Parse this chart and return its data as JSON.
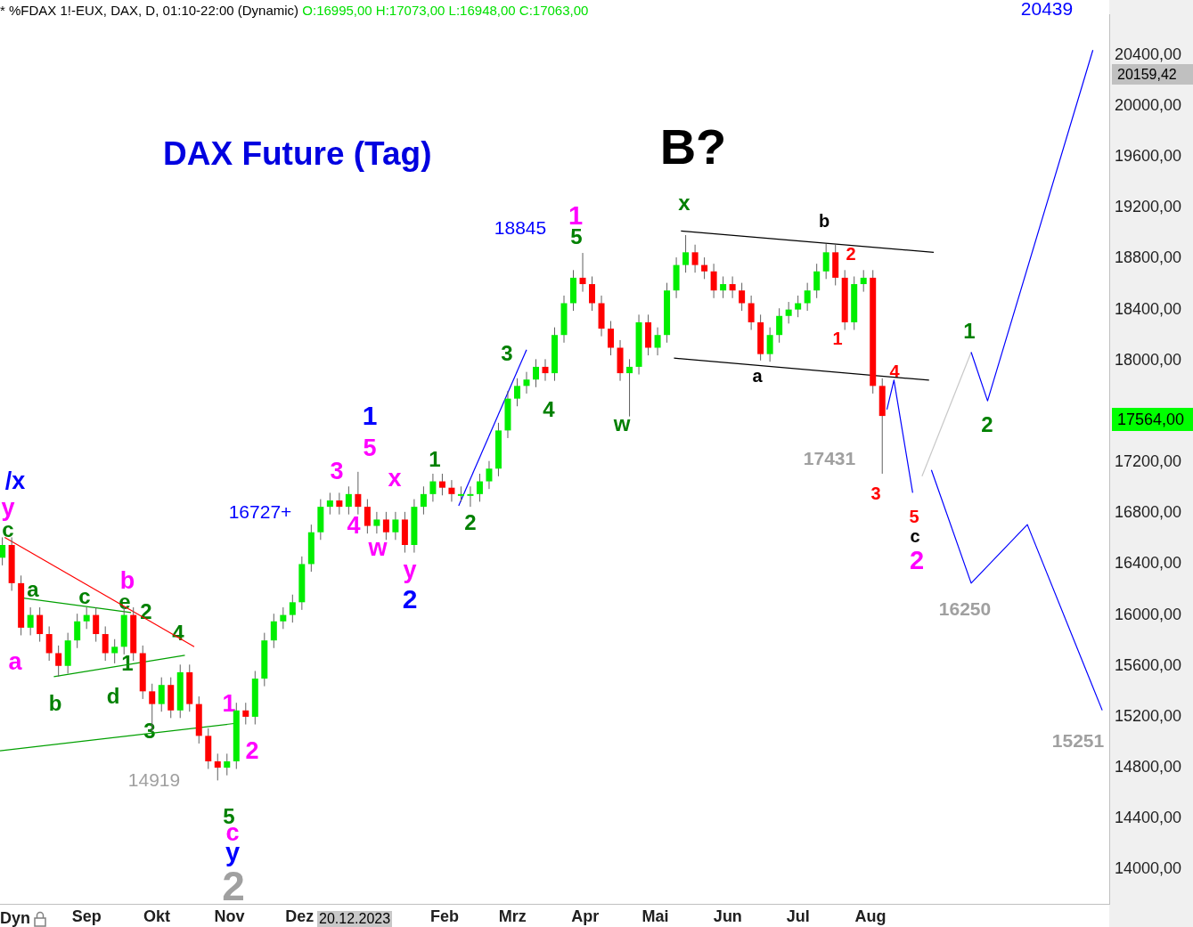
{
  "chart_data": {
    "type": "candlestick",
    "title": "DAX Future (Tag)",
    "subtitle": "* %FDAX 1!-EUX, DAX, D, 01:10-22:00 (Dynamic)",
    "x": [
      "2023-07-27",
      "2023-07-31",
      "2023-08-04",
      "2023-08-08",
      "2023-08-12",
      "2023-08-16",
      "2023-08-20",
      "2023-08-24",
      "2023-08-28",
      "2023-09-01",
      "2023-09-05",
      "2023-09-09",
      "2023-09-13",
      "2023-09-17",
      "2023-09-21",
      "2023-09-25",
      "2023-09-29",
      "2023-10-03",
      "2023-10-07",
      "2023-10-11",
      "2023-10-15",
      "2023-10-19",
      "2023-10-23",
      "2023-10-27",
      "2023-10-31",
      "2023-11-04",
      "2023-11-08",
      "2023-11-12",
      "2023-11-16",
      "2023-11-20",
      "2023-11-24",
      "2023-11-28",
      "2023-12-02",
      "2023-12-06",
      "2023-12-10",
      "2023-12-14",
      "2023-12-18",
      "2023-12-22",
      "2023-12-26",
      "2023-12-30",
      "2024-01-03",
      "2024-01-07",
      "2024-01-11",
      "2024-01-15",
      "2024-01-19",
      "2024-01-23",
      "2024-01-27",
      "2024-01-31",
      "2024-02-04",
      "2024-02-08",
      "2024-02-12",
      "2024-02-16",
      "2024-02-20",
      "2024-02-24",
      "2024-02-28",
      "2024-03-03",
      "2024-03-07",
      "2024-03-11",
      "2024-03-15",
      "2024-03-19",
      "2024-03-23",
      "2024-03-27",
      "2024-03-31",
      "2024-04-04",
      "2024-04-08",
      "2024-04-12",
      "2024-04-16",
      "2024-04-20",
      "2024-04-24",
      "2024-04-28",
      "2024-05-02",
      "2024-05-06",
      "2024-05-10",
      "2024-05-14",
      "2024-05-18",
      "2024-05-22",
      "2024-05-26",
      "2024-05-30",
      "2024-06-03",
      "2024-06-07",
      "2024-06-11",
      "2024-06-15",
      "2024-06-19",
      "2024-06-23",
      "2024-06-27",
      "2024-07-01",
      "2024-07-05",
      "2024-07-09",
      "2024-07-13",
      "2024-07-17",
      "2024-07-21",
      "2024-07-25",
      "2024-07-29",
      "2024-08-02",
      "2024-08-06"
    ],
    "ohlc": [
      [
        16450,
        16610,
        16390,
        16550
      ],
      [
        16550,
        16610,
        16190,
        16250
      ],
      [
        16250,
        16310,
        15840,
        15900
      ],
      [
        15900,
        16060,
        15840,
        16000
      ],
      [
        16000,
        16060,
        15790,
        15850
      ],
      [
        15850,
        15910,
        15640,
        15700
      ],
      [
        15700,
        15760,
        15515,
        15600
      ],
      [
        15600,
        15860,
        15540,
        15800
      ],
      [
        15800,
        16010,
        15740,
        15950
      ],
      [
        15950,
        16060,
        15890,
        16000
      ],
      [
        16000,
        16060,
        15790,
        15850
      ],
      [
        15850,
        15910,
        15640,
        15700
      ],
      [
        15700,
        15810,
        15620,
        15750
      ],
      [
        15750,
        16060,
        15690,
        16000
      ],
      [
        16000,
        16060,
        15640,
        15700
      ],
      [
        15700,
        15760,
        15340,
        15400
      ],
      [
        15400,
        15460,
        15080,
        15300
      ],
      [
        15300,
        15510,
        15240,
        15450
      ],
      [
        15450,
        15510,
        15190,
        15250
      ],
      [
        15250,
        15610,
        15190,
        15550
      ],
      [
        15550,
        15610,
        15240,
        15300
      ],
      [
        15300,
        15360,
        14990,
        15050
      ],
      [
        15050,
        15110,
        14790,
        14850
      ],
      [
        14850,
        14910,
        14700,
        14800
      ],
      [
        14800,
        14910,
        14740,
        14850
      ],
      [
        14850,
        15310,
        14790,
        15250
      ],
      [
        15250,
        15310,
        15140,
        15200
      ],
      [
        15200,
        15560,
        15140,
        15500
      ],
      [
        15500,
        15860,
        15440,
        15800
      ],
      [
        15800,
        16010,
        15740,
        15950
      ],
      [
        15950,
        16060,
        15890,
        16000
      ],
      [
        16000,
        16160,
        15940,
        16100
      ],
      [
        16100,
        16460,
        16040,
        16400
      ],
      [
        16400,
        16710,
        16340,
        16650
      ],
      [
        16650,
        16910,
        16590,
        16850
      ],
      [
        16850,
        16960,
        16790,
        16900
      ],
      [
        16900,
        16960,
        16790,
        16850
      ],
      [
        16850,
        17010,
        16790,
        16950
      ],
      [
        16950,
        17125,
        16790,
        16850
      ],
      [
        16850,
        16910,
        16640,
        16700
      ],
      [
        16700,
        16810,
        16640,
        16750
      ],
      [
        16750,
        16810,
        16590,
        16650
      ],
      [
        16650,
        16810,
        16590,
        16750
      ],
      [
        16750,
        16810,
        16490,
        16550
      ],
      [
        16550,
        16910,
        16490,
        16850
      ],
      [
        16850,
        17010,
        16790,
        16950
      ],
      [
        16950,
        17110,
        16890,
        17050
      ],
      [
        17050,
        17110,
        16940,
        17000
      ],
      [
        17000,
        17060,
        16890,
        16950
      ],
      [
        16950,
        17010,
        16890,
        16950
      ],
      [
        16950,
        17010,
        16850,
        16950
      ],
      [
        16950,
        17110,
        16890,
        17050
      ],
      [
        17050,
        17210,
        16990,
        17150
      ],
      [
        17150,
        17510,
        17090,
        17450
      ],
      [
        17450,
        17760,
        17390,
        17700
      ],
      [
        17700,
        17860,
        17640,
        17800
      ],
      [
        17800,
        17910,
        17740,
        17850
      ],
      [
        17850,
        18010,
        17790,
        17950
      ],
      [
        17950,
        18010,
        17840,
        17900
      ],
      [
        17900,
        18260,
        17840,
        18200
      ],
      [
        18200,
        18510,
        18140,
        18450
      ],
      [
        18450,
        18710,
        18390,
        18650
      ],
      [
        18650,
        18845,
        18540,
        18600
      ],
      [
        18600,
        18660,
        18390,
        18450
      ],
      [
        18450,
        18510,
        18190,
        18250
      ],
      [
        18250,
        18310,
        18040,
        18100
      ],
      [
        18100,
        18160,
        17840,
        17900
      ],
      [
        17900,
        18010,
        17560,
        17950
      ],
      [
        17950,
        18360,
        17890,
        18300
      ],
      [
        18300,
        18360,
        18040,
        18100
      ],
      [
        18100,
        18260,
        18040,
        18200
      ],
      [
        18200,
        18610,
        18140,
        18550
      ],
      [
        18550,
        18810,
        18490,
        18750
      ],
      [
        18750,
        18985,
        18690,
        18850
      ],
      [
        18850,
        18910,
        18690,
        18750
      ],
      [
        18750,
        18810,
        18640,
        18700
      ],
      [
        18700,
        18760,
        18490,
        18550
      ],
      [
        18550,
        18660,
        18490,
        18600
      ],
      [
        18600,
        18660,
        18490,
        18550
      ],
      [
        18550,
        18610,
        18390,
        18450
      ],
      [
        18450,
        18510,
        18240,
        18300
      ],
      [
        18300,
        18360,
        18000,
        18050
      ],
      [
        18050,
        18260,
        17990,
        18200
      ],
      [
        18200,
        18410,
        18140,
        18350
      ],
      [
        18350,
        18460,
        18290,
        18400
      ],
      [
        18400,
        18510,
        18340,
        18450
      ],
      [
        18450,
        18610,
        18390,
        18550
      ],
      [
        18550,
        18760,
        18490,
        18700
      ],
      [
        18700,
        18915,
        18640,
        18850
      ],
      [
        18850,
        18910,
        18590,
        18650
      ],
      [
        18650,
        18710,
        18240,
        18300
      ],
      [
        18300,
        18660,
        18240,
        18600
      ],
      [
        18600,
        18710,
        18540,
        18650
      ],
      [
        18650,
        18710,
        17740,
        17800
      ],
      [
        17800,
        17860,
        17110,
        17564
      ]
    ],
    "series": [
      {
        "type": "line",
        "color": "#0000ff",
        "x": [
          "2024-08-08",
          "2024-08-11",
          "2024-08-19"
        ],
        "values": [
          17615,
          17845,
          16960
        ]
      },
      {
        "type": "line",
        "color": "#0000ff",
        "x": [
          "2024-08-27",
          "2024-09-13",
          "2024-10-07",
          "2024-11-08"
        ],
        "values": [
          17140,
          16250,
          16710,
          15251
        ]
      },
      {
        "type": "line",
        "color": "#0000ff",
        "x": [
          "2024-09-13",
          "2024-09-20",
          "2024-11-04"
        ],
        "values": [
          18065,
          17683,
          20439
        ]
      },
      {
        "type": "line",
        "color": "#c8c8c8",
        "x": [
          "2024-08-23",
          "2024-09-13"
        ],
        "values": [
          17090,
          18065
        ]
      },
      {
        "type": "line",
        "color": "#000000",
        "x": [
          "2024-05-12",
          "2024-08-28"
        ],
        "values": [
          19018,
          18850
        ]
      },
      {
        "type": "line",
        "color": "#000000",
        "x": [
          "2024-05-09",
          "2024-08-26"
        ],
        "values": [
          18018,
          17845
        ]
      },
      {
        "type": "line",
        "color": "#ff0000",
        "x": [
          "2023-07-28",
          "2023-10-17"
        ],
        "values": [
          16610,
          15750
        ]
      },
      {
        "type": "line",
        "color": "#00a000",
        "x": [
          "2023-08-05",
          "2023-09-20"
        ],
        "values": [
          16133,
          16019
        ]
      },
      {
        "type": "line",
        "color": "#00a000",
        "x": [
          "2023-08-18",
          "2023-10-13"
        ],
        "values": [
          15515,
          15683
        ]
      },
      {
        "type": "line",
        "color": "#00a000",
        "x": [
          "2023-07-26",
          "2023-11-03"
        ],
        "values": [
          14932,
          15147
        ]
      },
      {
        "type": "line",
        "color": "#0000ff",
        "x": [
          "2024-02-07",
          "2024-03-07"
        ],
        "values": [
          16858,
          18085
        ]
      }
    ],
    "xlim": [
      "2023-07-26",
      "2024-11-11"
    ],
    "xticks": [
      {
        "value": "2023-09-01",
        "label": "Sep"
      },
      {
        "value": "2023-10-01",
        "label": "Okt"
      },
      {
        "value": "2023-11-01",
        "label": "Nov"
      },
      {
        "value": "2023-12-01",
        "label": "Dez"
      },
      {
        "value": "2024-02-01",
        "label": "Feb"
      },
      {
        "value": "2024-03-01",
        "label": "Mrz"
      },
      {
        "value": "2024-04-01",
        "label": "Apr"
      },
      {
        "value": "2024-05-01",
        "label": "Mai"
      },
      {
        "value": "2024-06-01",
        "label": "Jun"
      },
      {
        "value": "2024-07-01",
        "label": "Jul"
      },
      {
        "value": "2024-08-01",
        "label": "Aug"
      }
    ],
    "ylim": [
      13730,
      20715
    ],
    "yticks": [
      {
        "value": 14000,
        "label": "14000,00"
      },
      {
        "value": 14400,
        "label": "14400,00"
      },
      {
        "value": 14800,
        "label": "14800,00"
      },
      {
        "value": 15200,
        "label": "15200,00"
      },
      {
        "value": 15600,
        "label": "15600,00"
      },
      {
        "value": 16000,
        "label": "16000,00"
      },
      {
        "value": 16400,
        "label": "16400,00"
      },
      {
        "value": 16800,
        "label": "16800,00"
      },
      {
        "value": 17200,
        "label": "17200,00"
      },
      {
        "value": 18000,
        "label": "18000,00"
      },
      {
        "value": 18400,
        "label": "18400,00"
      },
      {
        "value": 18800,
        "label": "18800,00"
      },
      {
        "value": 19200,
        "label": "19200,00"
      },
      {
        "value": 19600,
        "label": "19600,00"
      },
      {
        "value": 20000,
        "label": "20000,00"
      },
      {
        "value": 20400,
        "label": "20400,00"
      }
    ],
    "grid": false,
    "legend": false,
    "annotations": [
      "O:16995,00 H:17073,00 L:16948,00 C:17063,00",
      "20.12.2023",
      "Dyn",
      "20159,42",
      "17564,00",
      "/x",
      "y",
      "c",
      "a",
      "a",
      "b",
      "c",
      "d",
      "b",
      "e",
      "2",
      "1",
      "3",
      "4",
      "14919",
      "1",
      "2",
      "5",
      "c",
      "y",
      "2",
      "16727+",
      "3",
      "1",
      "5",
      "4",
      "w",
      "x",
      "y",
      "2",
      "1",
      "2",
      "3",
      "4",
      "18845",
      "1",
      "5",
      "w",
      "x",
      "B?",
      "b",
      "2",
      "1",
      "a",
      "4",
      "17431",
      "3",
      "5",
      "c",
      "2",
      "1",
      "2",
      "16250",
      "15251",
      "20439"
    ]
  }
}
